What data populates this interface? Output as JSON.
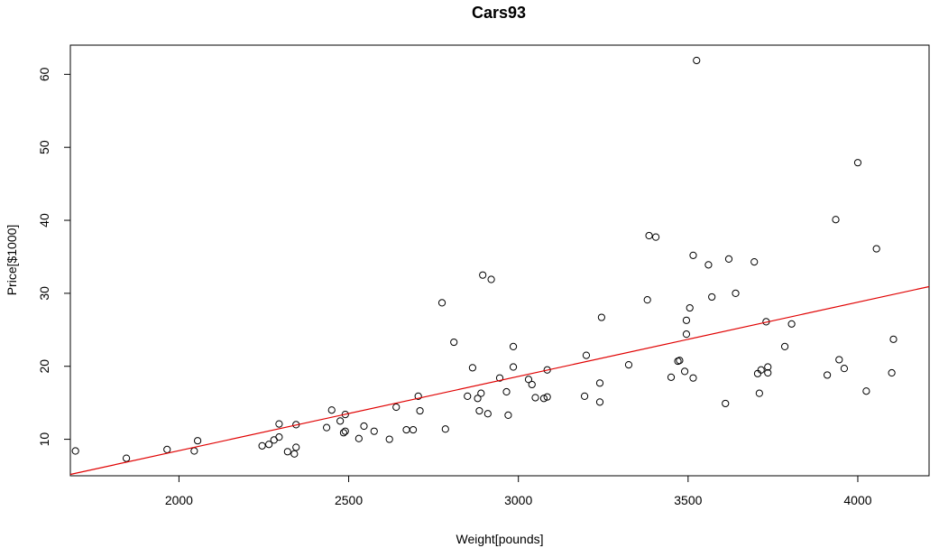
{
  "chart_data": {
    "type": "scatter",
    "title": "Cars93",
    "xlabel": "Weight[pounds]",
    "ylabel": "Price[$1000]",
    "xlim": [
      1680,
      4210
    ],
    "ylim": [
      5,
      64
    ],
    "xticks": [
      2000,
      2500,
      3000,
      3500,
      4000
    ],
    "yticks": [
      10,
      20,
      30,
      40,
      50,
      60
    ],
    "grid": false,
    "legend": "none",
    "point_color": "#000000",
    "line_color": "#e00000",
    "points": [
      [
        1695,
        8.4
      ],
      [
        1845,
        7.4
      ],
      [
        1965,
        8.6
      ],
      [
        2045,
        8.4
      ],
      [
        2055,
        9.8
      ],
      [
        2245,
        9.1
      ],
      [
        2265,
        9.3
      ],
      [
        2280,
        9.9
      ],
      [
        2295,
        10.3
      ],
      [
        2295,
        12.1
      ],
      [
        2320,
        8.3
      ],
      [
        2340,
        8.0
      ],
      [
        2345,
        8.9
      ],
      [
        2345,
        12.0
      ],
      [
        2435,
        11.6
      ],
      [
        2450,
        14.0
      ],
      [
        2475,
        12.5
      ],
      [
        2485,
        10.9
      ],
      [
        2490,
        11.1
      ],
      [
        2490,
        13.4
      ],
      [
        2530,
        10.1
      ],
      [
        2545,
        11.8
      ],
      [
        2575,
        11.1
      ],
      [
        2620,
        10.0
      ],
      [
        2640,
        14.4
      ],
      [
        2670,
        11.3
      ],
      [
        2690,
        11.3
      ],
      [
        2705,
        15.9
      ],
      [
        2710,
        13.9
      ],
      [
        2775,
        28.7
      ],
      [
        2785,
        11.4
      ],
      [
        2810,
        23.3
      ],
      [
        2850,
        15.9
      ],
      [
        2865,
        19.8
      ],
      [
        2880,
        15.6
      ],
      [
        2885,
        13.9
      ],
      [
        2890,
        16.3
      ],
      [
        2895,
        32.5
      ],
      [
        2910,
        13.5
      ],
      [
        2920,
        31.9
      ],
      [
        2945,
        18.4
      ],
      [
        2965,
        16.5
      ],
      [
        2970,
        13.3
      ],
      [
        2985,
        22.7
      ],
      [
        2985,
        19.9
      ],
      [
        3030,
        18.2
      ],
      [
        3040,
        17.5
      ],
      [
        3050,
        15.7
      ],
      [
        3075,
        15.6
      ],
      [
        3085,
        15.8
      ],
      [
        3085,
        19.5
      ],
      [
        3195,
        15.9
      ],
      [
        3200,
        21.5
      ],
      [
        3240,
        15.1
      ],
      [
        3240,
        17.7
      ],
      [
        3245,
        26.7
      ],
      [
        3325,
        20.2
      ],
      [
        3380,
        29.1
      ],
      [
        3385,
        37.9
      ],
      [
        3405,
        37.7
      ],
      [
        3450,
        18.5
      ],
      [
        3470,
        20.7
      ],
      [
        3475,
        20.8
      ],
      [
        3490,
        19.3
      ],
      [
        3495,
        26.3
      ],
      [
        3495,
        24.4
      ],
      [
        3505,
        28.0
      ],
      [
        3515,
        35.2
      ],
      [
        3515,
        18.4
      ],
      [
        3525,
        61.9
      ],
      [
        3560,
        33.9
      ],
      [
        3570,
        29.5
      ],
      [
        3610,
        14.9
      ],
      [
        3620,
        34.7
      ],
      [
        3640,
        30.0
      ],
      [
        3695,
        34.3
      ],
      [
        3705,
        19.0
      ],
      [
        3710,
        16.3
      ],
      [
        3715,
        19.5
      ],
      [
        3730,
        26.1
      ],
      [
        3735,
        19.9
      ],
      [
        3735,
        19.1
      ],
      [
        3785,
        22.7
      ],
      [
        3805,
        25.8
      ],
      [
        3910,
        18.8
      ],
      [
        3935,
        40.1
      ],
      [
        3945,
        20.9
      ],
      [
        3960,
        19.7
      ],
      [
        4000,
        47.9
      ],
      [
        4025,
        16.6
      ],
      [
        4055,
        36.1
      ],
      [
        4100,
        19.1
      ],
      [
        4105,
        23.7
      ]
    ],
    "regression_line": {
      "intercept": -11.9,
      "slope": 0.01017
    }
  }
}
